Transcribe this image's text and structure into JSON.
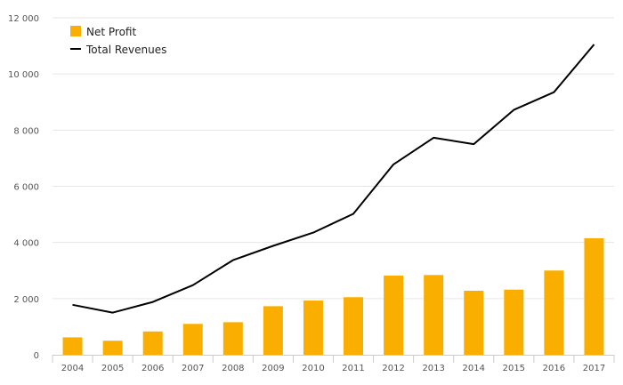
{
  "chart_data": {
    "type": "bar+line",
    "categories": [
      "2004",
      "2005",
      "2006",
      "2007",
      "2008",
      "2009",
      "2010",
      "2011",
      "2012",
      "2013",
      "2014",
      "2015",
      "2016",
      "2017"
    ],
    "series": [
      {
        "name": "Net Profit",
        "kind": "bar",
        "values": [
          620,
          500,
          830,
          1100,
          1160,
          1730,
          1930,
          2050,
          2820,
          2840,
          2280,
          2320,
          3000,
          4150
        ]
      },
      {
        "name": "Total Revenues",
        "kind": "line",
        "values": [
          1780,
          1500,
          1880,
          2480,
          3370,
          3880,
          4350,
          5020,
          6780,
          7730,
          7500,
          8720,
          9350,
          11050
        ]
      }
    ],
    "y_ticks": [
      "0",
      "2 000",
      "4 000",
      "6 000",
      "8 000",
      "10 000",
      "12 000"
    ],
    "y_tick_values": [
      0,
      2000,
      4000,
      6000,
      8000,
      10000,
      12000
    ],
    "ylim": [
      0,
      12000
    ],
    "grid": true,
    "legend_position": "top-left",
    "colors": {
      "bar": "#FAAF00",
      "line": "#000000",
      "grid": "#e6e6e6",
      "axis": "#cccccc"
    }
  }
}
